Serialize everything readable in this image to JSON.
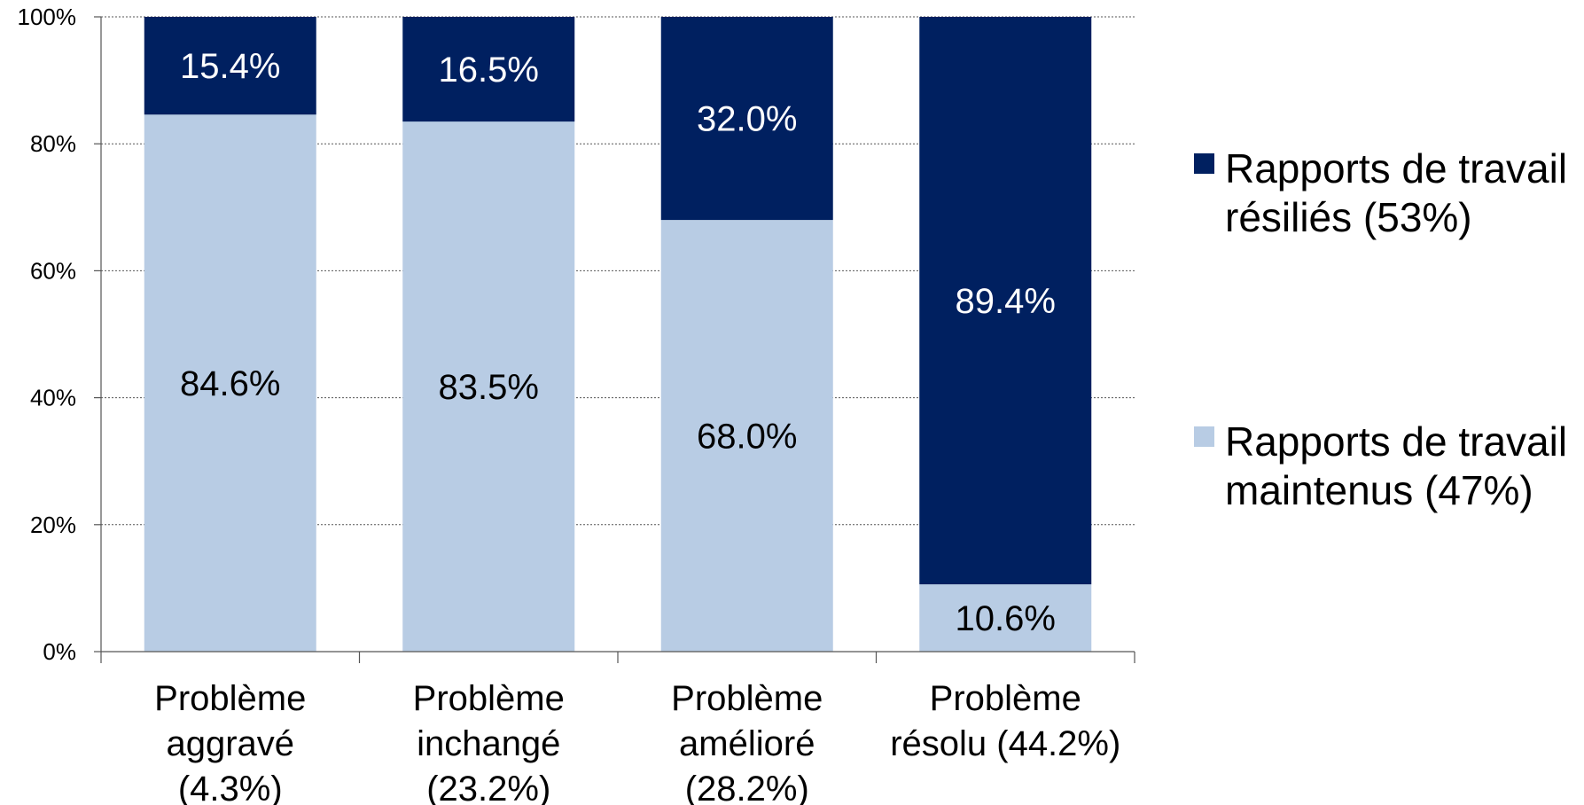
{
  "chart_data": {
    "type": "bar",
    "stacked": true,
    "categories": [
      [
        "Problème",
        "aggravé",
        "(4.3%)"
      ],
      [
        "Problème",
        "inchangé",
        "(23.2%)"
      ],
      [
        "Problème",
        "amélioré",
        "(28.2%)"
      ],
      [
        "Problème",
        "résolu (44.2%)"
      ]
    ],
    "series": [
      {
        "name": [
          "Rapports de travail",
          "maintenus (47%)"
        ],
        "color": "#b8cce4",
        "label_color": "#000000",
        "values": [
          84.6,
          83.5,
          68.0,
          10.6
        ],
        "labels": [
          "84.6%",
          "83.5%",
          "68.0%",
          "10.6%"
        ]
      },
      {
        "name": [
          "Rapports de travail",
          "résiliés (53%)"
        ],
        "color": "#002060",
        "label_color": "#ffffff",
        "values": [
          15.4,
          16.5,
          32.0,
          89.4
        ],
        "labels": [
          "15.4%",
          "16.5%",
          "32.0%",
          "89.4%"
        ]
      }
    ],
    "ylim": [
      0,
      100
    ],
    "yticks": [
      "0%",
      "20%",
      "40%",
      "60%",
      "80%",
      "100%"
    ],
    "grid": true,
    "legend_position": "right",
    "legend_order": [
      1,
      0
    ]
  }
}
